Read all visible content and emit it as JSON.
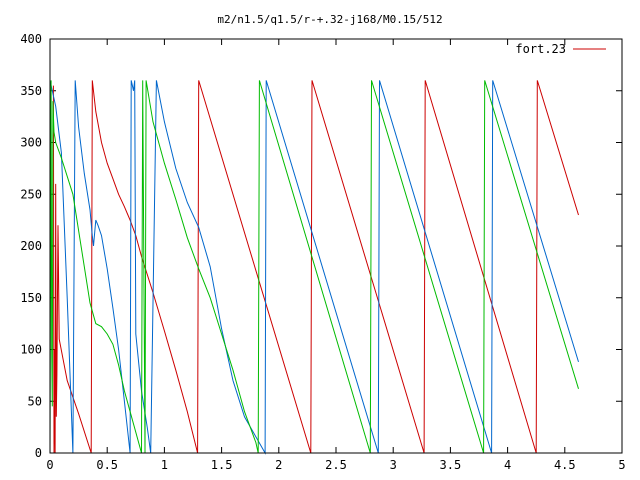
{
  "chart_data": {
    "type": "line",
    "title": "m2/n1.5/q1.5/r-+.32-j168/M0.15/512",
    "xlim": [
      0,
      5
    ],
    "ylim": [
      0,
      400
    ],
    "x_ticks": [
      0,
      0.5,
      1,
      1.5,
      2,
      2.5,
      3,
      3.5,
      4,
      4.5,
      5
    ],
    "x_tick_labels": [
      "0",
      "0.5",
      "1",
      "1.5",
      "2",
      "2.5",
      "3",
      "3.5",
      "4",
      "4.5",
      "5"
    ],
    "y_ticks": [
      0,
      50,
      100,
      150,
      200,
      250,
      300,
      350,
      400
    ],
    "y_tick_labels": [
      "0",
      "50",
      "100",
      "150",
      "200",
      "250",
      "300",
      "350",
      "400"
    ],
    "legend": {
      "label": "fort.23",
      "placement": "top-right"
    },
    "series": [
      {
        "color": "#cc0000",
        "points": [
          [
            0.03,
            355
          ],
          [
            0.035,
            0
          ],
          [
            0.04,
            100
          ],
          [
            0.045,
            0
          ],
          [
            0.05,
            260
          ],
          [
            0.055,
            35
          ],
          [
            0.06,
            75
          ],
          [
            0.07,
            220
          ],
          [
            0.08,
            110
          ],
          [
            0.15,
            70
          ],
          [
            0.25,
            38
          ],
          [
            0.36,
            0
          ],
          [
            0.37,
            360
          ],
          [
            0.4,
            330
          ],
          [
            0.45,
            300
          ],
          [
            0.5,
            280
          ],
          [
            0.55,
            265
          ],
          [
            0.6,
            250
          ],
          [
            0.65,
            238
          ],
          [
            0.7,
            225
          ],
          [
            0.75,
            210
          ],
          [
            0.8,
            190
          ],
          [
            0.9,
            155
          ],
          [
            1.0,
            118
          ],
          [
            1.1,
            80
          ],
          [
            1.2,
            40
          ],
          [
            1.29,
            0
          ],
          [
            1.3,
            360
          ],
          [
            2.28,
            0
          ],
          [
            2.29,
            360
          ],
          [
            3.27,
            0
          ],
          [
            3.28,
            360
          ],
          [
            4.25,
            0
          ],
          [
            4.26,
            360
          ],
          [
            4.62,
            230
          ]
        ]
      },
      {
        "color": "#0066cc",
        "points": [
          [
            0.0,
            360
          ],
          [
            0.02,
            350
          ],
          [
            0.05,
            335
          ],
          [
            0.1,
            290
          ],
          [
            0.15,
            150
          ],
          [
            0.2,
            0
          ],
          [
            0.22,
            360
          ],
          [
            0.25,
            315
          ],
          [
            0.3,
            270
          ],
          [
            0.35,
            235
          ],
          [
            0.37,
            210
          ],
          [
            0.38,
            200
          ],
          [
            0.4,
            225
          ],
          [
            0.42,
            220
          ],
          [
            0.45,
            210
          ],
          [
            0.5,
            178
          ],
          [
            0.55,
            140
          ],
          [
            0.6,
            100
          ],
          [
            0.65,
            50
          ],
          [
            0.7,
            0
          ],
          [
            0.71,
            360
          ],
          [
            0.72,
            355
          ],
          [
            0.73,
            350
          ],
          [
            0.74,
            360
          ],
          [
            0.75,
            115
          ],
          [
            0.8,
            60
          ],
          [
            0.85,
            25
          ],
          [
            0.88,
            0
          ],
          [
            0.93,
            360
          ],
          [
            1.0,
            320
          ],
          [
            1.1,
            275
          ],
          [
            1.2,
            242
          ],
          [
            1.3,
            218
          ],
          [
            1.4,
            180
          ],
          [
            1.5,
            120
          ],
          [
            1.6,
            70
          ],
          [
            1.7,
            35
          ],
          [
            1.88,
            0
          ],
          [
            1.89,
            360
          ],
          [
            2.87,
            0
          ],
          [
            2.88,
            360
          ],
          [
            3.86,
            0
          ],
          [
            3.87,
            360
          ],
          [
            4.62,
            88
          ]
        ]
      },
      {
        "color": "#00bb00",
        "points": [
          [
            0.0,
            0
          ],
          [
            0.01,
            360
          ],
          [
            0.015,
            100
          ],
          [
            0.02,
            45
          ],
          [
            0.025,
            340
          ],
          [
            0.035,
            310
          ],
          [
            0.05,
            300
          ],
          [
            0.1,
            285
          ],
          [
            0.2,
            250
          ],
          [
            0.3,
            180
          ],
          [
            0.35,
            145
          ],
          [
            0.4,
            125
          ],
          [
            0.45,
            122
          ],
          [
            0.5,
            115
          ],
          [
            0.55,
            105
          ],
          [
            0.6,
            85
          ],
          [
            0.65,
            60
          ],
          [
            0.7,
            40
          ],
          [
            0.75,
            20
          ],
          [
            0.8,
            0
          ],
          [
            0.81,
            360
          ],
          [
            0.83,
            0
          ],
          [
            0.84,
            360
          ],
          [
            0.9,
            320
          ],
          [
            0.95,
            300
          ],
          [
            1.0,
            280
          ],
          [
            1.1,
            245
          ],
          [
            1.2,
            208
          ],
          [
            1.3,
            178
          ],
          [
            1.4,
            150
          ],
          [
            1.5,
            115
          ],
          [
            1.6,
            80
          ],
          [
            1.7,
            40
          ],
          [
            1.8,
            10
          ],
          [
            1.82,
            0
          ],
          [
            1.83,
            360
          ],
          [
            2.8,
            0
          ],
          [
            2.81,
            360
          ],
          [
            3.79,
            0
          ],
          [
            3.8,
            360
          ],
          [
            4.62,
            62
          ]
        ]
      }
    ]
  }
}
